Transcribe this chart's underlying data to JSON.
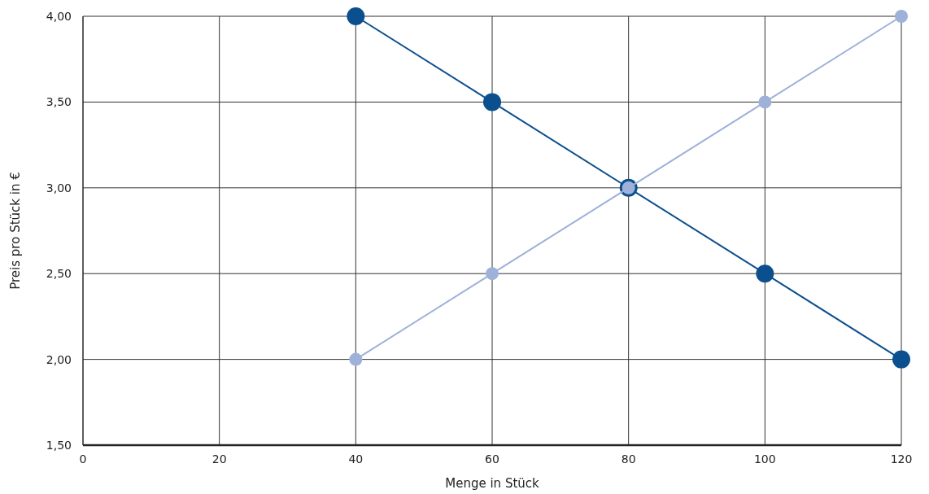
{
  "chart_data": {
    "type": "line",
    "xlabel": "Menge in Stück",
    "ylabel": "Preis pro Stück in €",
    "xlim": [
      0,
      120
    ],
    "xticks": [
      0,
      20,
      40,
      60,
      80,
      100,
      120
    ],
    "ylim": [
      1.5,
      4
    ],
    "yticks": [
      {
        "value": 1.5,
        "label": "1,50"
      },
      {
        "value": 2,
        "label": "2,00"
      },
      {
        "value": 2.5,
        "label": "2,50"
      },
      {
        "value": 3,
        "label": "3,00"
      },
      {
        "value": 3.5,
        "label": "3,50"
      },
      {
        "value": 4,
        "label": "4,00"
      }
    ],
    "grid": true,
    "marker": "circle",
    "line_style": "solid",
    "series": [
      {
        "color": "#0b4f8e",
        "x": [
          40,
          60,
          80,
          100,
          120
        ],
        "values": [
          4,
          3.5,
          3,
          2.5,
          2
        ]
      },
      {
        "color": "#9db1d9",
        "x": [
          40,
          60,
          80,
          100,
          120
        ],
        "values": [
          2,
          2.5,
          3,
          3.5,
          4
        ]
      }
    ]
  }
}
